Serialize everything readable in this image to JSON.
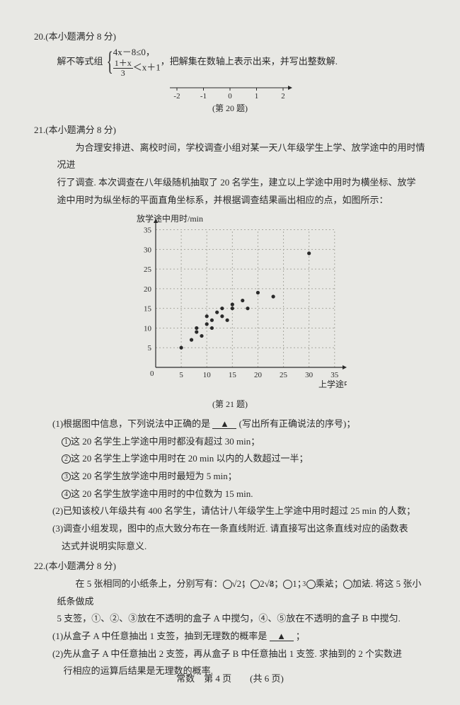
{
  "q20": {
    "num": "20.",
    "points": "(本小题满分 8 分)",
    "prefix": "解不等式组",
    "line1": "4x－8≤0，",
    "frac_num": "1＋x",
    "frac_den": "3",
    "line2_tail": "＜x＋1",
    "suffix": "，把解集在数轴上表示出来，并写出整数解.",
    "numline": {
      "ticks": [
        "-2",
        "-1",
        "0",
        "1",
        "2"
      ],
      "caption": "(第 20 题)"
    }
  },
  "q21": {
    "num": "21.",
    "points": "(本小题满分 8 分)",
    "para1": "为合理安排进、离校时间，学校调查小组对某一天八年级学生上学、放学途中的用时情况进",
    "para2": "行了调查. 本次调查在八年级随机抽取了 20 名学生，建立以上学途中用时为横坐标、放学",
    "para3": "途中用时为纵坐标的平面直角坐标系，并根据调查结果画出相应的点，如图所示：",
    "chart": {
      "ylabel": "放学途中用时/min",
      "xlabel": "上学途中用时/min",
      "caption": "(第 21 题)",
      "xmin": 0,
      "xmax": 36,
      "ymin": 0,
      "ymax": 36,
      "xticks": [
        5,
        10,
        15,
        20,
        25,
        30,
        35
      ],
      "yticks": [
        5,
        10,
        15,
        20,
        25,
        30,
        35
      ],
      "grid_color": "#a8a8a0",
      "axis_color": "#2a2a2a",
      "point_color": "#2a2a2a",
      "bg": "#e8e8e4",
      "points": [
        [
          5,
          5
        ],
        [
          7,
          7
        ],
        [
          8,
          9
        ],
        [
          8,
          10
        ],
        [
          9,
          8
        ],
        [
          10,
          11
        ],
        [
          10,
          13
        ],
        [
          11,
          10
        ],
        [
          11,
          12
        ],
        [
          12,
          14
        ],
        [
          13,
          13
        ],
        [
          13,
          15
        ],
        [
          14,
          12
        ],
        [
          15,
          16
        ],
        [
          15,
          15
        ],
        [
          17,
          17
        ],
        [
          18,
          15
        ],
        [
          20,
          19
        ],
        [
          23,
          18
        ],
        [
          30,
          29
        ]
      ]
    },
    "sub1_lead": "(1)根据图中信息，下列说法中正确的是 ",
    "sub1_tail": " (写出所有正确说法的序号)；",
    "opts": [
      "这 20 名学生上学途中用时都没有超过 30 min；",
      "这 20 名学生上学途中用时在 20 min 以内的人数超过一半；",
      "这 20 名学生放学途中用时最短为 5 min；",
      "这 20 名学生放学途中用时的中位数为 15 min."
    ],
    "sub2": "(2)已知该校八年级共有 400 名学生，请估计八年级学生上学途中用时超过 25 min 的人数；",
    "sub3a": "(3)调查小组发现，图中的点大致分布在一条直线附近. 请直接写出这条直线对应的函数表",
    "sub3b": "达式并说明实际意义."
  },
  "q22": {
    "num": "22.",
    "points": "(本小题满分 8 分)",
    "p1a": "在 5 张相同的小纸条上，分别写有：",
    "chips": [
      "√2",
      "2√8",
      "1",
      "乘法",
      "加法"
    ],
    "p1b": ". 将这 5 张小纸条做成",
    "p2": "5 支签，①、②、③放在不透明的盒子 A 中搅匀，④、⑤放在不透明的盒子 B 中搅匀.",
    "sub1_lead": "(1)从盒子 A 中任意抽出 1 支签，抽到无理数的概率是 ",
    "sub1_tail": " ；",
    "sub2a": "(2)先从盒子 A 中任意抽出 2 支签，再从盒子 B 中任意抽出 1 支签. 求抽到的 2 个实数进",
    "sub2b": "行相应的运算后结果是无理数的概率."
  },
  "footer": {
    "left": "常数　第 4 页",
    "right": "(共 6 页)"
  }
}
